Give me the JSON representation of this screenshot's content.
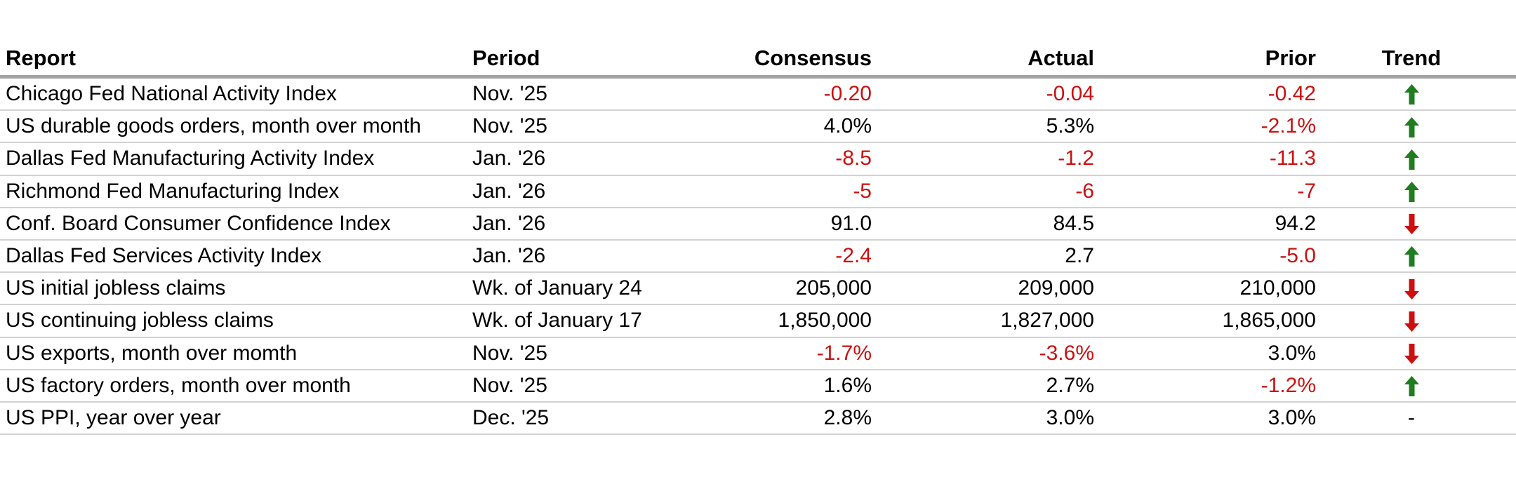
{
  "chart_data": {
    "type": "table",
    "columns": [
      "Report",
      "Period",
      "Consensus",
      "Actual",
      "Prior",
      "Trend"
    ],
    "rows": [
      {
        "report": "Chicago Fed National Activity Index",
        "period": "Nov. '25",
        "consensus": "-0.20",
        "actual": "-0.04",
        "prior": "-0.42",
        "trend": "up"
      },
      {
        "report": "US durable goods orders, month over month",
        "period": "Nov. '25",
        "consensus": "4.0%",
        "actual": "5.3%",
        "prior": "-2.1%",
        "trend": "up"
      },
      {
        "report": "Dallas Fed Manufacturing Activity Index",
        "period": "Jan. '26",
        "consensus": "-8.5",
        "actual": "-1.2",
        "prior": "-11.3",
        "trend": "up"
      },
      {
        "report": "Richmond Fed Manufacturing Index",
        "period": "Jan. '26",
        "consensus": "-5",
        "actual": "-6",
        "prior": "-7",
        "trend": "up"
      },
      {
        "report": "Conf. Board Consumer Confidence Index",
        "period": "Jan. '26",
        "consensus": "91.0",
        "actual": "84.5",
        "prior": "94.2",
        "trend": "down"
      },
      {
        "report": "Dallas Fed Services Activity Index",
        "period": "Jan. '26",
        "consensus": "-2.4",
        "actual": "2.7",
        "prior": "-5.0",
        "trend": "up"
      },
      {
        "report": "US initial jobless claims",
        "period": "Wk. of January 24",
        "consensus": "205,000",
        "actual": "209,000",
        "prior": "210,000",
        "trend": "down"
      },
      {
        "report": "US continuing jobless claims",
        "period": "Wk. of January 17",
        "consensus": "1,850,000",
        "actual": "1,827,000",
        "prior": "1,865,000",
        "trend": "down"
      },
      {
        "report": "US exports, month over momth",
        "period": "Nov. '25",
        "consensus": "-1.7%",
        "actual": "-3.6%",
        "prior": "3.0%",
        "trend": "down"
      },
      {
        "report": "US factory orders, month over month",
        "period": "Nov. '25",
        "consensus": "1.6%",
        "actual": "2.7%",
        "prior": "-1.2%",
        "trend": "up"
      },
      {
        "report": "US PPI, year over year",
        "period": "Dec. '25",
        "consensus": "2.8%",
        "actual": "3.0%",
        "prior": "3.0%",
        "trend": "-"
      }
    ],
    "trend_legend": {
      "up": "green-up-arrow",
      "down": "red-down-arrow",
      "-": "no-change-dash"
    }
  },
  "colors": {
    "negative_value": "#cc1010",
    "positive_value": "#000000",
    "trend_up": "#1f7d1f",
    "trend_down": "#cc1010",
    "header_rule": "#a4a4a4",
    "row_rule": "#d2d2d2"
  }
}
